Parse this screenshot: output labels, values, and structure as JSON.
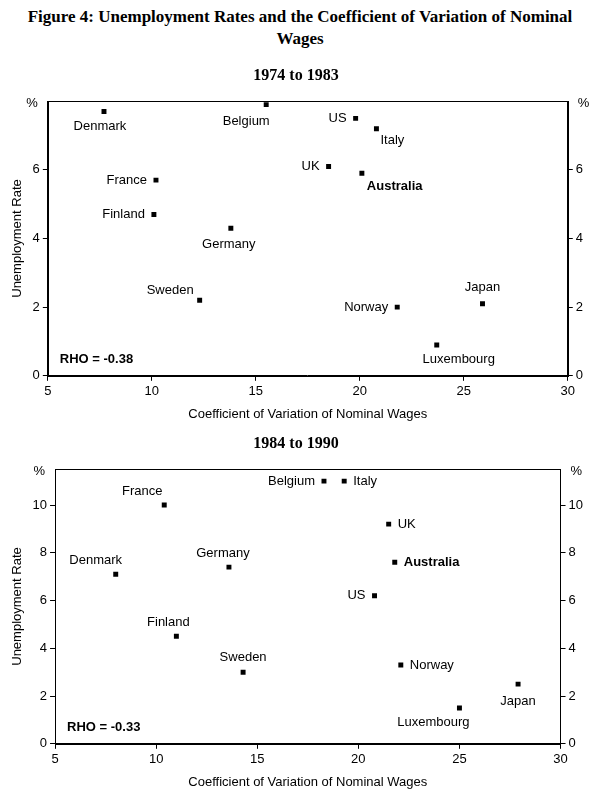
{
  "title": "Figure 4: Unemployment Rates and the Coefficient of Variation of Nominal Wages",
  "chart_data": [
    {
      "type": "scatter",
      "title": "1974 to 1983",
      "x_label": "Coefficient of Variation of Nominal Wages",
      "y_label": "Unemployment Rate",
      "y_unit": "%",
      "annotation": "RHO = -0.38",
      "point_labels": [
        "Denmark",
        "Belgium",
        "US",
        "Italy",
        "UK",
        "Australia",
        "France",
        "Finland",
        "Germany",
        "Sweden",
        "Norway",
        "Japan",
        "Luxembourg"
      ],
      "x": [
        7.7,
        15.5,
        19.8,
        20.8,
        18.5,
        20.1,
        10.2,
        10.1,
        13.8,
        12.3,
        21.8,
        25.9,
        23.7
      ],
      "values": [
        7.7,
        7.9,
        7.5,
        7.2,
        6.1,
        5.9,
        5.7,
        4.7,
        4.3,
        2.2,
        2.0,
        2.1,
        0.9
      ],
      "color": "#000000",
      "marker": "square",
      "xlim": [
        5,
        30
      ],
      "xticks": [
        5,
        10,
        15,
        20,
        25,
        30
      ],
      "ylim": [
        0,
        8
      ],
      "yticks": [
        0,
        2,
        4,
        6
      ],
      "y2lim": [
        0,
        8
      ],
      "y2ticks": [
        0,
        2,
        4,
        6
      ],
      "grid": false
    },
    {
      "type": "scatter",
      "title": "1984 to 1990",
      "x_label": "Coefficient of Variation of Nominal Wages",
      "y_label": "Unemployment Rate",
      "y_unit": "%",
      "annotation": "RHO = -0.33",
      "point_labels": [
        "France",
        "Belgium",
        "Italy",
        "UK",
        "Germany",
        "Denmark",
        "Australia",
        "US",
        "Finland",
        "Sweden",
        "Norway",
        "Luxembourg",
        "Japan"
      ],
      "x": [
        10.4,
        18.3,
        19.3,
        21.5,
        13.6,
        8.0,
        21.8,
        20.8,
        11.0,
        14.3,
        22.1,
        25.0,
        27.9
      ],
      "values": [
        10.0,
        11.0,
        11.0,
        9.2,
        7.4,
        7.1,
        7.6,
        6.2,
        4.5,
        3.0,
        3.3,
        1.5,
        2.5
      ],
      "color": "#000000",
      "marker": "square",
      "xlim": [
        5,
        30
      ],
      "xticks": [
        5,
        10,
        15,
        20,
        25,
        30
      ],
      "ylim": [
        0,
        11.5
      ],
      "yticks": [
        0,
        2,
        4,
        6,
        8,
        10
      ],
      "y2lim": [
        0,
        11.5
      ],
      "y2ticks": [
        0,
        2,
        4,
        6,
        8,
        10
      ],
      "grid": false
    }
  ]
}
